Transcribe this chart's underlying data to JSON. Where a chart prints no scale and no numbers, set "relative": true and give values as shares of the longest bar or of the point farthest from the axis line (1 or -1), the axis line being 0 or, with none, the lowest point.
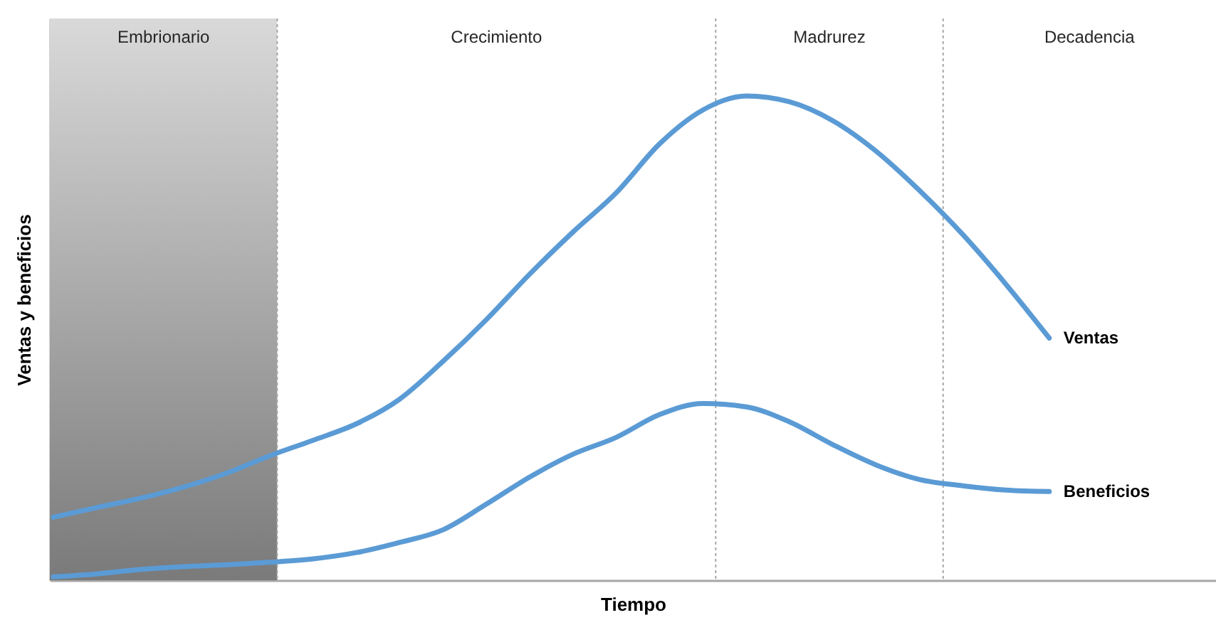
{
  "chart_data": {
    "type": "line",
    "relative": true,
    "xlabel": "Tiempo",
    "ylabel": "Ventas y beneficios",
    "tick_labels": false,
    "categories": [
      null,
      null,
      null,
      null,
      null,
      null,
      null,
      null,
      null,
      null,
      null,
      null,
      null,
      null,
      null,
      null,
      null,
      null,
      null,
      null,
      null,
      null,
      null,
      null,
      null,
      null,
      null
    ],
    "series": [
      {
        "name": "Ventas",
        "color": "#5b9bd5",
        "values": [
          0.13,
          0.15,
          0.169,
          0.192,
          0.221,
          0.257,
          0.289,
          0.323,
          0.374,
          0.452,
          0.538,
          0.632,
          0.719,
          0.8,
          0.901,
          0.971,
          1.0,
          0.988,
          0.949,
          0.886,
          0.805,
          0.714,
          0.611,
          0.5,
          null,
          null,
          null
        ]
      },
      {
        "name": "Beneficios",
        "color": "#5b9bd5",
        "values": [
          0.007,
          0.013,
          0.022,
          0.028,
          0.032,
          0.037,
          0.044,
          0.057,
          0.078,
          0.104,
          0.157,
          0.213,
          0.26,
          0.295,
          0.342,
          0.365,
          0.358,
          0.327,
          0.28,
          0.238,
          0.208,
          0.195,
          0.186,
          0.183,
          null,
          null,
          null
        ]
      }
    ],
    "annotations": [
      "Embrionario",
      "Crecimiento",
      "Madrurez",
      "Decadencia"
    ]
  }
}
